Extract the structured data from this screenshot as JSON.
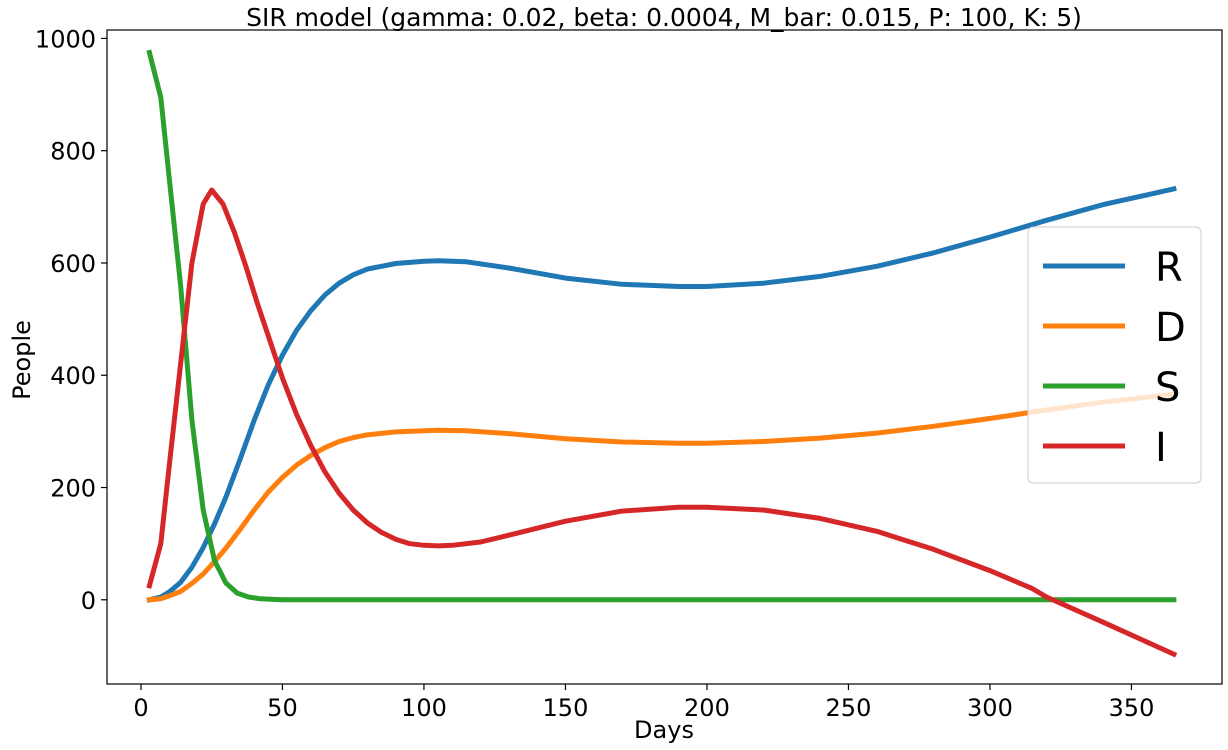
{
  "chart_data": {
    "type": "line",
    "title": "SIR model (gamma: 0.02, beta: 0.0004, M_bar: 0.015, P: 100, K: 5)",
    "xlabel": "Days",
    "ylabel": "People",
    "xlim": [
      -12,
      382
    ],
    "ylim": [
      -150,
      1015
    ],
    "xticks": [
      0,
      50,
      100,
      150,
      200,
      250,
      300,
      350
    ],
    "yticks": [
      0,
      200,
      400,
      600,
      800,
      1000
    ],
    "grid": false,
    "legend": "center-right",
    "series": [
      {
        "name": "R",
        "color": "#1f77b4",
        "points": [
          [
            3,
            0
          ],
          [
            7,
            5
          ],
          [
            10,
            14
          ],
          [
            14,
            31
          ],
          [
            18,
            58
          ],
          [
            22,
            93
          ],
          [
            26,
            135
          ],
          [
            30,
            183
          ],
          [
            35,
            250
          ],
          [
            40,
            320
          ],
          [
            45,
            383
          ],
          [
            50,
            436
          ],
          [
            55,
            480
          ],
          [
            60,
            515
          ],
          [
            65,
            543
          ],
          [
            70,
            564
          ],
          [
            75,
            579
          ],
          [
            80,
            589
          ],
          [
            90,
            599
          ],
          [
            100,
            603
          ],
          [
            105,
            604
          ],
          [
            115,
            602
          ],
          [
            130,
            591
          ],
          [
            150,
            573
          ],
          [
            170,
            562
          ],
          [
            190,
            558
          ],
          [
            200,
            558
          ],
          [
            220,
            564
          ],
          [
            240,
            576
          ],
          [
            260,
            594
          ],
          [
            280,
            618
          ],
          [
            300,
            646
          ],
          [
            320,
            676
          ],
          [
            340,
            704
          ],
          [
            365,
            732
          ]
        ]
      },
      {
        "name": "D",
        "color": "#ff7f0e",
        "points": [
          [
            3,
            0
          ],
          [
            7,
            2
          ],
          [
            10,
            7
          ],
          [
            14,
            15
          ],
          [
            18,
            29
          ],
          [
            22,
            46
          ],
          [
            26,
            68
          ],
          [
            30,
            92
          ],
          [
            35,
            125
          ],
          [
            40,
            160
          ],
          [
            45,
            192
          ],
          [
            50,
            218
          ],
          [
            55,
            240
          ],
          [
            60,
            257
          ],
          [
            65,
            271
          ],
          [
            70,
            282
          ],
          [
            75,
            289
          ],
          [
            80,
            294
          ],
          [
            90,
            299
          ],
          [
            100,
            301
          ],
          [
            105,
            302
          ],
          [
            115,
            301
          ],
          [
            130,
            296
          ],
          [
            150,
            287
          ],
          [
            170,
            281
          ],
          [
            190,
            279
          ],
          [
            200,
            279
          ],
          [
            220,
            282
          ],
          [
            240,
            288
          ],
          [
            260,
            297
          ],
          [
            280,
            309
          ],
          [
            300,
            323
          ],
          [
            320,
            338
          ],
          [
            340,
            352
          ],
          [
            365,
            366
          ]
        ]
      },
      {
        "name": "S",
        "color": "#2ca02c",
        "points": [
          [
            3,
            975
          ],
          [
            7,
            895
          ],
          [
            10,
            750
          ],
          [
            14,
            560
          ],
          [
            18,
            320
          ],
          [
            22,
            160
          ],
          [
            26,
            70
          ],
          [
            30,
            30
          ],
          [
            34,
            12
          ],
          [
            38,
            5
          ],
          [
            42,
            2
          ],
          [
            46,
            1
          ],
          [
            50,
            0
          ],
          [
            60,
            0
          ],
          [
            100,
            0
          ],
          [
            200,
            0
          ],
          [
            300,
            0
          ],
          [
            365,
            0
          ]
        ]
      },
      {
        "name": "I",
        "color": "#d62728",
        "points": [
          [
            3,
            25
          ],
          [
            7,
            100
          ],
          [
            10,
            240
          ],
          [
            14,
            420
          ],
          [
            18,
            600
          ],
          [
            22,
            705
          ],
          [
            25,
            730
          ],
          [
            29,
            705
          ],
          [
            33,
            655
          ],
          [
            37,
            595
          ],
          [
            41,
            530
          ],
          [
            45,
            470
          ],
          [
            50,
            395
          ],
          [
            55,
            330
          ],
          [
            60,
            275
          ],
          [
            65,
            228
          ],
          [
            70,
            190
          ],
          [
            75,
            160
          ],
          [
            80,
            137
          ],
          [
            85,
            120
          ],
          [
            90,
            108
          ],
          [
            95,
            100
          ],
          [
            100,
            97
          ],
          [
            105,
            96
          ],
          [
            110,
            97
          ],
          [
            120,
            103
          ],
          [
            130,
            115
          ],
          [
            150,
            140
          ],
          [
            170,
            158
          ],
          [
            190,
            165
          ],
          [
            200,
            165
          ],
          [
            220,
            160
          ],
          [
            240,
            145
          ],
          [
            260,
            122
          ],
          [
            280,
            90
          ],
          [
            300,
            52
          ],
          [
            315,
            20
          ],
          [
            320,
            5
          ],
          [
            340,
            -40
          ],
          [
            365,
            -97
          ]
        ]
      }
    ]
  }
}
